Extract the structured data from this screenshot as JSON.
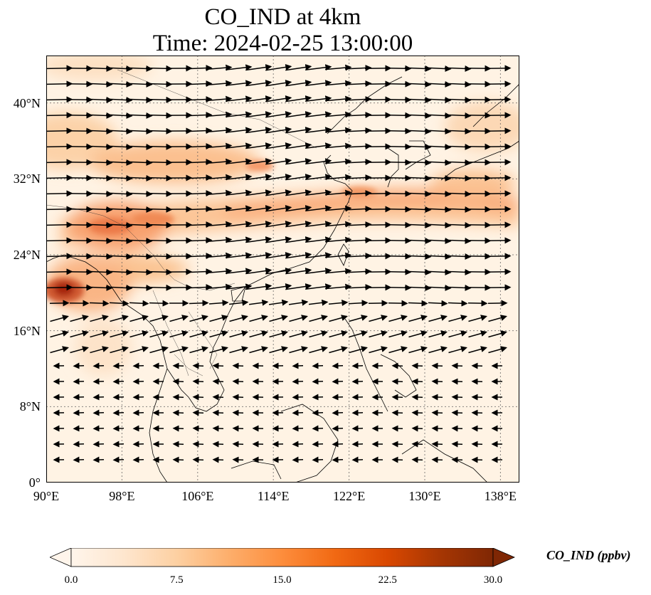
{
  "title": {
    "line1": "CO_IND at 4km",
    "line2": "Time: 2024-02-25 13:00:00"
  },
  "map": {
    "lon_range": [
      90,
      140
    ],
    "lat_range": [
      0,
      45
    ],
    "gridlines": true,
    "lat_ticks": [
      {
        "value": 0,
        "label": "0°"
      },
      {
        "value": 8,
        "label": "8°N"
      },
      {
        "value": 16,
        "label": "16°N"
      },
      {
        "value": 24,
        "label": "24°N"
      },
      {
        "value": 32,
        "label": "32°N"
      },
      {
        "value": 40,
        "label": "40°N"
      }
    ],
    "lon_ticks": [
      {
        "value": 90,
        "label": "90°E"
      },
      {
        "value": 98,
        "label": "98°E"
      },
      {
        "value": 106,
        "label": "106°E"
      },
      {
        "value": 114,
        "label": "114°E"
      },
      {
        "value": 122,
        "label": "122°E"
      },
      {
        "value": 130,
        "label": "130°E"
      },
      {
        "value": 138,
        "label": "138°E"
      }
    ]
  },
  "colorbar": {
    "label": "CO_IND (ppbv)",
    "min": 0,
    "max": 30,
    "ticks": [
      "0.0",
      "7.5",
      "15.0",
      "22.5",
      "30.0"
    ],
    "colormap": [
      "#fff5eb",
      "#fee6ce",
      "#fdd0a2",
      "#fdae6b",
      "#fd8d3c",
      "#f16913",
      "#d94801",
      "#a63603",
      "#7f2704"
    ]
  }
}
